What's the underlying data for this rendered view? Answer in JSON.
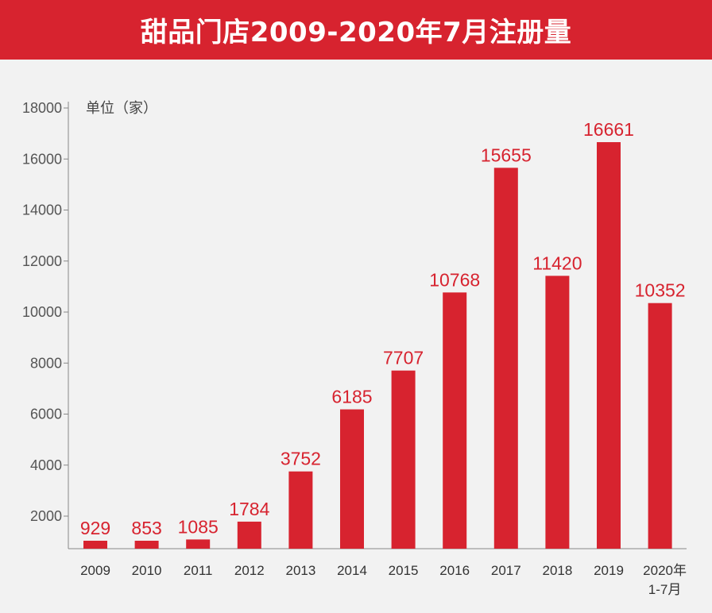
{
  "chart_data": {
    "type": "bar",
    "title": "甜品门店2009-2020年7月注册量",
    "ylabel": "单位（家）",
    "xlabel": "",
    "categories": [
      "2009",
      "2010",
      "2011",
      "2012",
      "2013",
      "2014",
      "2015",
      "2016",
      "2017",
      "2018",
      "2019",
      "2020年\n1-7月"
    ],
    "values": [
      929,
      853,
      1085,
      1784,
      3752,
      6185,
      7707,
      10768,
      15655,
      11420,
      16661,
      10352
    ],
    "yticks": [
      2000,
      4000,
      6000,
      8000,
      10000,
      12000,
      14000,
      16000,
      18000
    ],
    "ylim": [
      0,
      18000
    ],
    "grid": false,
    "legend": "none",
    "colors": {
      "bar": "#d7232f",
      "banner": "#d7232f",
      "background": "#f2f2f2"
    }
  }
}
